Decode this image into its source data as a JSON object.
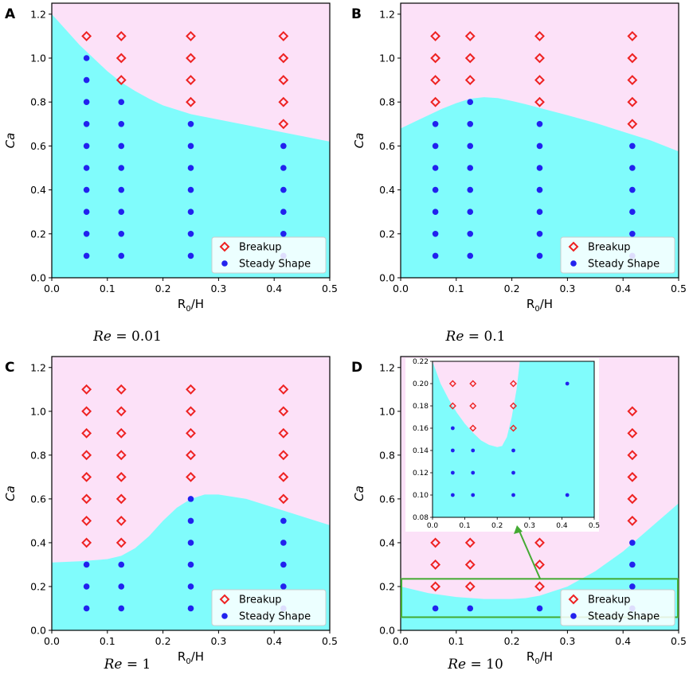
{
  "colors": {
    "breakup_region": "#fce1f8",
    "steady_region": "#80fcfc",
    "breakup_marker": "#ee2222",
    "steady_marker": "#2222ee",
    "zoom_box": "#44aa33"
  },
  "x_ticks": [
    "0.0",
    "0.1",
    "0.2",
    "0.3",
    "0.4",
    "0.5"
  ],
  "y_ticks": [
    "0.0",
    "0.2",
    "0.4",
    "0.6",
    "0.8",
    "1.0",
    "1.2"
  ],
  "inset_x_ticks": [
    "0.0",
    "0.1",
    "0.2",
    "0.3",
    "0.4",
    "0.5"
  ],
  "inset_y_ticks": [
    "0.08",
    "0.10",
    "0.12",
    "0.14",
    "0.16",
    "0.18",
    "0.20",
    "0.22"
  ],
  "chart_data": [
    {
      "type": "scatter",
      "panel": "A",
      "caption": "Re = 0.01",
      "xlabel": "R0/H",
      "ylabel": "Ca",
      "xlim": [
        0,
        0.5
      ],
      "ylim": [
        0,
        1.25
      ],
      "legend": [
        "Breakup",
        "Steady Shape"
      ],
      "legend_loc": "lower-right",
      "series": [
        {
          "name": "Breakup",
          "points": [
            [
              0.0625,
              1.1
            ],
            [
              0.125,
              1.1
            ],
            [
              0.125,
              1.0
            ],
            [
              0.125,
              0.9
            ],
            [
              0.25,
              1.1
            ],
            [
              0.25,
              1.0
            ],
            [
              0.25,
              0.9
            ],
            [
              0.25,
              0.8
            ],
            [
              0.4167,
              1.1
            ],
            [
              0.4167,
              1.0
            ],
            [
              0.4167,
              0.9
            ],
            [
              0.4167,
              0.8
            ],
            [
              0.4167,
              0.7
            ]
          ]
        },
        {
          "name": "Steady Shape",
          "points": [
            [
              0.0625,
              1.0
            ],
            [
              0.0625,
              0.9
            ],
            [
              0.0625,
              0.8
            ],
            [
              0.0625,
              0.7
            ],
            [
              0.0625,
              0.6
            ],
            [
              0.0625,
              0.5
            ],
            [
              0.0625,
              0.4
            ],
            [
              0.0625,
              0.3
            ],
            [
              0.0625,
              0.2
            ],
            [
              0.0625,
              0.1
            ],
            [
              0.125,
              0.8
            ],
            [
              0.125,
              0.7
            ],
            [
              0.125,
              0.6
            ],
            [
              0.125,
              0.5
            ],
            [
              0.125,
              0.4
            ],
            [
              0.125,
              0.3
            ],
            [
              0.125,
              0.2
            ],
            [
              0.125,
              0.1
            ],
            [
              0.25,
              0.7
            ],
            [
              0.25,
              0.6
            ],
            [
              0.25,
              0.5
            ],
            [
              0.25,
              0.4
            ],
            [
              0.25,
              0.3
            ],
            [
              0.25,
              0.2
            ],
            [
              0.25,
              0.1
            ],
            [
              0.4167,
              0.6
            ],
            [
              0.4167,
              0.5
            ],
            [
              0.4167,
              0.4
            ],
            [
              0.4167,
              0.3
            ],
            [
              0.4167,
              0.2
            ],
            [
              0.4167,
              0.1
            ]
          ]
        }
      ],
      "boundary": [
        [
          0,
          1.2
        ],
        [
          0.025,
          1.13
        ],
        [
          0.05,
          1.06
        ],
        [
          0.075,
          1.0
        ],
        [
          0.1,
          0.94
        ],
        [
          0.125,
          0.89
        ],
        [
          0.15,
          0.85
        ],
        [
          0.175,
          0.815
        ],
        [
          0.2,
          0.785
        ],
        [
          0.225,
          0.765
        ],
        [
          0.25,
          0.745
        ],
        [
          0.3,
          0.72
        ],
        [
          0.35,
          0.695
        ],
        [
          0.4,
          0.67
        ],
        [
          0.45,
          0.645
        ],
        [
          0.5,
          0.62
        ]
      ]
    },
    {
      "type": "scatter",
      "panel": "B",
      "caption": "Re = 0.1",
      "xlabel": "R0/H",
      "ylabel": "Ca",
      "xlim": [
        0,
        0.5
      ],
      "ylim": [
        0,
        1.25
      ],
      "legend": [
        "Breakup",
        "Steady Shape"
      ],
      "legend_loc": "lower-right",
      "series": [
        {
          "name": "Breakup",
          "points": [
            [
              0.0625,
              1.1
            ],
            [
              0.0625,
              1.0
            ],
            [
              0.0625,
              0.9
            ],
            [
              0.0625,
              0.8
            ],
            [
              0.125,
              1.1
            ],
            [
              0.125,
              1.0
            ],
            [
              0.125,
              0.9
            ],
            [
              0.25,
              1.1
            ],
            [
              0.25,
              1.0
            ],
            [
              0.25,
              0.9
            ],
            [
              0.25,
              0.8
            ],
            [
              0.4167,
              1.1
            ],
            [
              0.4167,
              1.0
            ],
            [
              0.4167,
              0.9
            ],
            [
              0.4167,
              0.8
            ],
            [
              0.4167,
              0.7
            ]
          ]
        },
        {
          "name": "Steady Shape",
          "points": [
            [
              0.0625,
              0.7
            ],
            [
              0.0625,
              0.6
            ],
            [
              0.0625,
              0.5
            ],
            [
              0.0625,
              0.4
            ],
            [
              0.0625,
              0.3
            ],
            [
              0.0625,
              0.2
            ],
            [
              0.0625,
              0.1
            ],
            [
              0.125,
              0.8
            ],
            [
              0.125,
              0.7
            ],
            [
              0.125,
              0.6
            ],
            [
              0.125,
              0.5
            ],
            [
              0.125,
              0.4
            ],
            [
              0.125,
              0.3
            ],
            [
              0.125,
              0.2
            ],
            [
              0.125,
              0.1
            ],
            [
              0.25,
              0.7
            ],
            [
              0.25,
              0.6
            ],
            [
              0.25,
              0.5
            ],
            [
              0.25,
              0.4
            ],
            [
              0.25,
              0.3
            ],
            [
              0.25,
              0.2
            ],
            [
              0.25,
              0.1
            ],
            [
              0.4167,
              0.6
            ],
            [
              0.4167,
              0.5
            ],
            [
              0.4167,
              0.4
            ],
            [
              0.4167,
              0.3
            ],
            [
              0.4167,
              0.2
            ],
            [
              0.4167,
              0.1
            ]
          ]
        }
      ],
      "boundary": [
        [
          0,
          0.68
        ],
        [
          0.025,
          0.71
        ],
        [
          0.05,
          0.74
        ],
        [
          0.075,
          0.77
        ],
        [
          0.1,
          0.795
        ],
        [
          0.125,
          0.815
        ],
        [
          0.15,
          0.822
        ],
        [
          0.175,
          0.818
        ],
        [
          0.2,
          0.805
        ],
        [
          0.225,
          0.79
        ],
        [
          0.25,
          0.773
        ],
        [
          0.3,
          0.74
        ],
        [
          0.35,
          0.705
        ],
        [
          0.4,
          0.665
        ],
        [
          0.45,
          0.625
        ],
        [
          0.5,
          0.575
        ]
      ]
    },
    {
      "type": "scatter",
      "panel": "C",
      "caption": "Re = 1",
      "xlabel": "R0/H",
      "ylabel": "Ca",
      "xlim": [
        0,
        0.5
      ],
      "ylim": [
        0,
        1.25
      ],
      "legend": [
        "Breakup",
        "Steady Shape"
      ],
      "legend_loc": "lower-right",
      "series": [
        {
          "name": "Breakup",
          "points": [
            [
              0.0625,
              1.1
            ],
            [
              0.0625,
              1.0
            ],
            [
              0.0625,
              0.9
            ],
            [
              0.0625,
              0.8
            ],
            [
              0.0625,
              0.7
            ],
            [
              0.0625,
              0.6
            ],
            [
              0.0625,
              0.5
            ],
            [
              0.0625,
              0.4
            ],
            [
              0.125,
              1.1
            ],
            [
              0.125,
              1.0
            ],
            [
              0.125,
              0.9
            ],
            [
              0.125,
              0.8
            ],
            [
              0.125,
              0.7
            ],
            [
              0.125,
              0.6
            ],
            [
              0.125,
              0.5
            ],
            [
              0.125,
              0.4
            ],
            [
              0.25,
              1.1
            ],
            [
              0.25,
              1.0
            ],
            [
              0.25,
              0.9
            ],
            [
              0.25,
              0.8
            ],
            [
              0.25,
              0.7
            ],
            [
              0.4167,
              1.1
            ],
            [
              0.4167,
              1.0
            ],
            [
              0.4167,
              0.9
            ],
            [
              0.4167,
              0.8
            ],
            [
              0.4167,
              0.7
            ],
            [
              0.4167,
              0.6
            ]
          ]
        },
        {
          "name": "Steady Shape",
          "points": [
            [
              0.0625,
              0.3
            ],
            [
              0.0625,
              0.2
            ],
            [
              0.0625,
              0.1
            ],
            [
              0.125,
              0.3
            ],
            [
              0.125,
              0.2
            ],
            [
              0.125,
              0.1
            ],
            [
              0.25,
              0.6
            ],
            [
              0.25,
              0.5
            ],
            [
              0.25,
              0.4
            ],
            [
              0.25,
              0.3
            ],
            [
              0.25,
              0.2
            ],
            [
              0.25,
              0.1
            ],
            [
              0.4167,
              0.5
            ],
            [
              0.4167,
              0.4
            ],
            [
              0.4167,
              0.3
            ],
            [
              0.4167,
              0.2
            ],
            [
              0.4167,
              0.1
            ]
          ]
        }
      ],
      "boundary": [
        [
          0,
          0.31
        ],
        [
          0.05,
          0.315
        ],
        [
          0.1,
          0.325
        ],
        [
          0.125,
          0.34
        ],
        [
          0.15,
          0.375
        ],
        [
          0.175,
          0.43
        ],
        [
          0.2,
          0.5
        ],
        [
          0.225,
          0.56
        ],
        [
          0.25,
          0.6
        ],
        [
          0.275,
          0.62
        ],
        [
          0.3,
          0.62
        ],
        [
          0.35,
          0.6
        ],
        [
          0.4,
          0.56
        ],
        [
          0.45,
          0.52
        ],
        [
          0.5,
          0.48
        ]
      ]
    },
    {
      "type": "scatter",
      "panel": "D",
      "caption": "Re = 10",
      "xlabel": "R0/H",
      "ylabel": "Ca",
      "xlim": [
        0,
        0.5
      ],
      "ylim": [
        0,
        1.25
      ],
      "legend": [
        "Breakup",
        "Steady Shape"
      ],
      "legend_loc": "lower-right",
      "series": [
        {
          "name": "Breakup",
          "points": [
            [
              0.0625,
              0.4
            ],
            [
              0.0625,
              0.3
            ],
            [
              0.0625,
              0.2
            ],
            [
              0.125,
              0.4
            ],
            [
              0.125,
              0.3
            ],
            [
              0.125,
              0.2
            ],
            [
              0.25,
              0.4
            ],
            [
              0.25,
              0.3
            ],
            [
              0.25,
              0.2
            ],
            [
              0.4167,
              1.0
            ],
            [
              0.4167,
              0.9
            ],
            [
              0.4167,
              0.8
            ],
            [
              0.4167,
              0.7
            ],
            [
              0.4167,
              0.6
            ],
            [
              0.4167,
              0.5
            ]
          ]
        },
        {
          "name": "Steady Shape",
          "points": [
            [
              0.0625,
              0.1
            ],
            [
              0.125,
              0.1
            ],
            [
              0.25,
              0.1
            ],
            [
              0.4167,
              0.4
            ],
            [
              0.4167,
              0.3
            ],
            [
              0.4167,
              0.2
            ],
            [
              0.4167,
              0.1
            ]
          ]
        }
      ],
      "boundary": [
        [
          0,
          0.2
        ],
        [
          0.05,
          0.17
        ],
        [
          0.1,
          0.152
        ],
        [
          0.15,
          0.143
        ],
        [
          0.2,
          0.143
        ],
        [
          0.225,
          0.147
        ],
        [
          0.25,
          0.158
        ],
        [
          0.3,
          0.2
        ],
        [
          0.35,
          0.27
        ],
        [
          0.4,
          0.36
        ],
        [
          0.45,
          0.47
        ],
        [
          0.5,
          0.58
        ]
      ],
      "zoom_box": {
        "x": [
          0,
          0.5
        ],
        "y": [
          0.06,
          0.235
        ]
      },
      "inset": {
        "xlim": [
          0,
          0.5
        ],
        "ylim": [
          0.08,
          0.22
        ],
        "series": [
          {
            "name": "Breakup",
            "points": [
              [
                0.0625,
                0.2
              ],
              [
                0.0625,
                0.18
              ],
              [
                0.125,
                0.2
              ],
              [
                0.125,
                0.18
              ],
              [
                0.125,
                0.16
              ],
              [
                0.25,
                0.2
              ],
              [
                0.25,
                0.18
              ],
              [
                0.25,
                0.16
              ]
            ]
          },
          {
            "name": "Steady Shape",
            "points": [
              [
                0.0625,
                0.16
              ],
              [
                0.0625,
                0.14
              ],
              [
                0.0625,
                0.12
              ],
              [
                0.0625,
                0.1
              ],
              [
                0.125,
                0.14
              ],
              [
                0.125,
                0.12
              ],
              [
                0.125,
                0.1
              ],
              [
                0.25,
                0.14
              ],
              [
                0.25,
                0.12
              ],
              [
                0.25,
                0.1
              ],
              [
                0.4167,
                0.2
              ],
              [
                0.4167,
                0.1
              ]
            ]
          }
        ],
        "boundary": [
          [
            0,
            0.22
          ],
          [
            0.025,
            0.2
          ],
          [
            0.05,
            0.186
          ],
          [
            0.075,
            0.174
          ],
          [
            0.1,
            0.164
          ],
          [
            0.125,
            0.156
          ],
          [
            0.15,
            0.149
          ],
          [
            0.175,
            0.145
          ],
          [
            0.2,
            0.143
          ],
          [
            0.215,
            0.144
          ],
          [
            0.23,
            0.152
          ],
          [
            0.245,
            0.17
          ],
          [
            0.26,
            0.195
          ],
          [
            0.27,
            0.22
          ]
        ]
      }
    }
  ]
}
